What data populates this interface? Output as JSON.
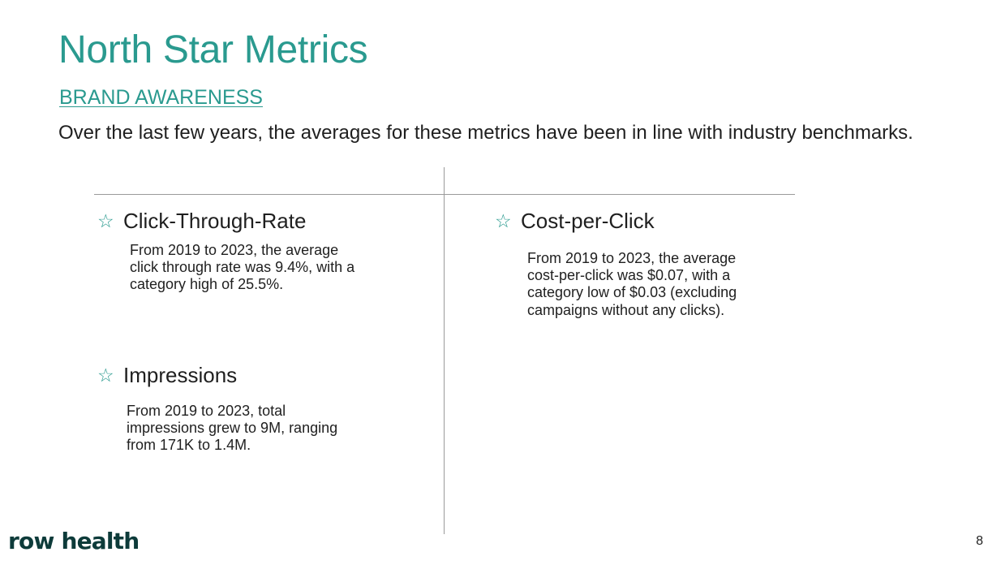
{
  "header": {
    "title": "North Star Metrics",
    "subtitle": "BRAND AWARENESS",
    "intro": "Over the last few years, the averages for these metrics have been in line with industry benchmarks."
  },
  "metrics": [
    {
      "name": "Click-Through-Rate",
      "icon": "star-outline-icon",
      "description": "From 2019 to 2023, the average click through rate was 9.4%, with a category high of 25.5%."
    },
    {
      "name": "Impressions",
      "icon": "star-outline-icon",
      "description": "From 2019 to 2023, total impressions grew to 9M, ranging from 171K to 1.4M."
    },
    {
      "name": "Cost-per-Click",
      "icon": "star-outline-icon",
      "description": "From 2019 to 2023, the average cost-per-click was $0.07, with a category low of $0.03 (excluding campaigns without any clicks)."
    }
  ],
  "footer": {
    "logo": "row health",
    "page_number": "8"
  },
  "colors": {
    "accent": "#2a9a8f",
    "logo": "#0d3b3a",
    "divider": "#9a9a9a"
  }
}
